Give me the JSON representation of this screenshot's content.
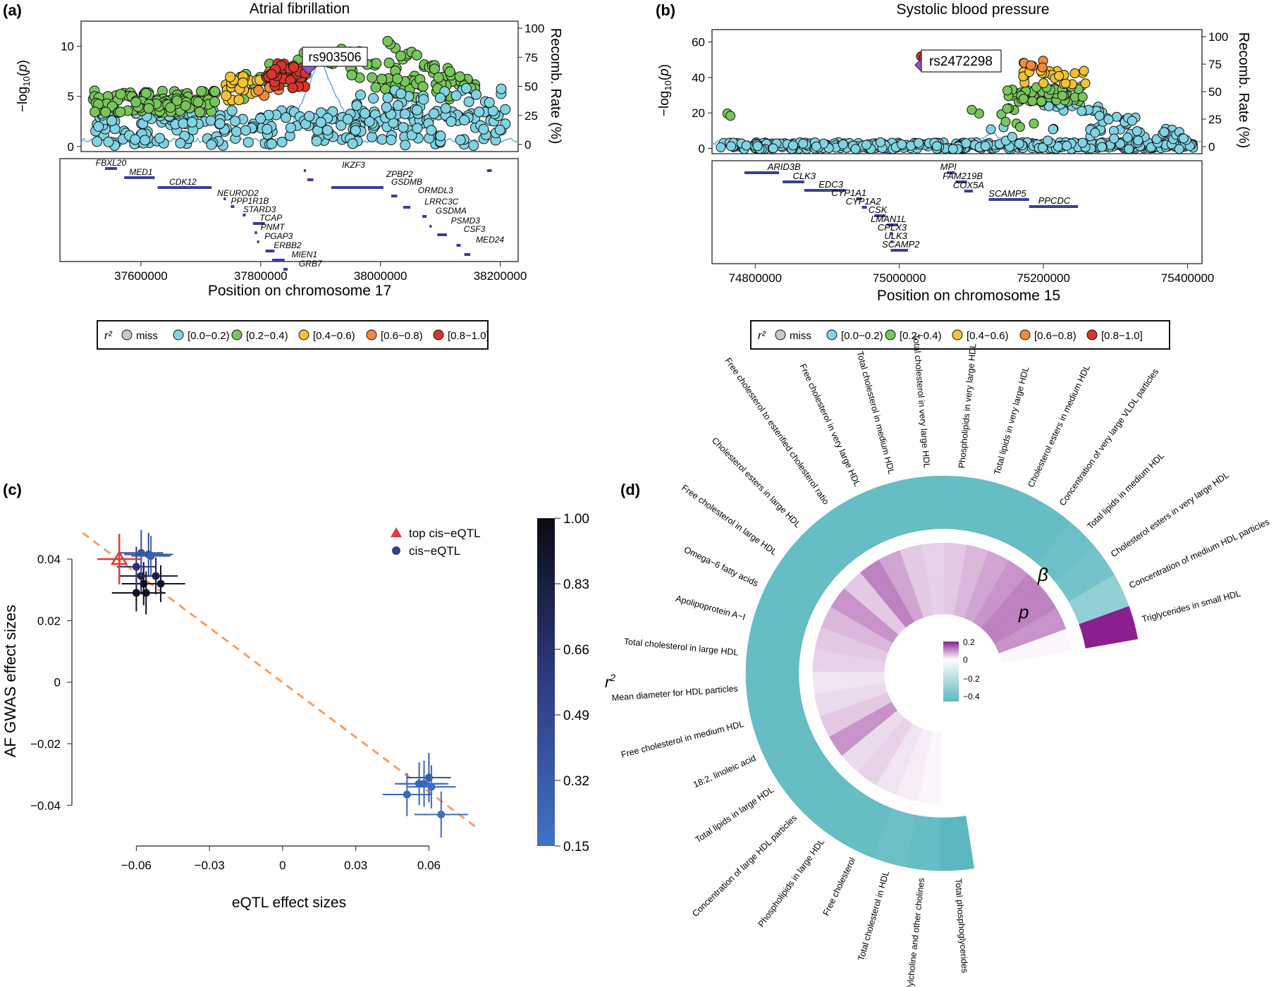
{
  "figure_title": "",
  "colors": {
    "miss": "#c8c8c8",
    "r0": "#7fd3e3",
    "r1": "#77c65a",
    "r2": "#f2c232",
    "r3": "#f08a3c",
    "r4": "#d8352c",
    "lead": "#8e57c8",
    "gene": "#3b3f96",
    "teal": "#6fc0c7",
    "purple": "#8b1f8f",
    "recomb": "#6ab0d8",
    "fit": "#f0a36a",
    "top": "#e23a36"
  },
  "panel_a": {
    "panel_label": "(a)",
    "title": "Atrial fibrillation",
    "ylabel": "−log10(p)",
    "y2label": "Recomb. Rate (%)",
    "xlabel": "Position on chromosome 17",
    "lead_snp": "rs903506",
    "chart_data": {
      "type": "scatter",
      "xlim": [
        37500000,
        38230000
      ],
      "ylim": [
        -0.5,
        12.5
      ],
      "y_ticks": [
        "0",
        "5",
        "10"
      ],
      "y2_ticks": [
        "0",
        "25",
        "50",
        "75",
        "100"
      ],
      "x_ticks": [
        "37600000",
        "37800000",
        "38000000",
        "38200000"
      ],
      "lead": {
        "x": 37880000,
        "y": 7.9
      },
      "gene_rows": [
        [
          37540000,
          37560000,
          14
        ],
        [
          37572000,
          37623000,
          27
        ],
        [
          37628000,
          37718000,
          41
        ],
        [
          37738000,
          37742000,
          57
        ],
        [
          37750000,
          37756000,
          68
        ],
        [
          37770000,
          37775000,
          80
        ],
        [
          37787000,
          37807000,
          92
        ],
        [
          37790000,
          37794000,
          105
        ],
        [
          37794000,
          37796000,
          118
        ],
        [
          37808000,
          37823000,
          131
        ],
        [
          37819000,
          37840000,
          144
        ],
        [
          37838000,
          37845000,
          157
        ],
        [
          37872000,
          37873000,
          17
        ],
        [
          37878000,
          37888000,
          30
        ],
        [
          37918000,
          38005000,
          41
        ],
        [
          38018000,
          38028000,
          53
        ],
        [
          38038000,
          38050000,
          69
        ],
        [
          38070000,
          38077000,
          82
        ],
        [
          38082000,
          38085000,
          96
        ],
        [
          38095000,
          38111000,
          108
        ],
        [
          38127000,
          38134000,
          123
        ],
        [
          38140000,
          38150000,
          136
        ],
        [
          38178000,
          38186000,
          17
        ]
      ],
      "genes": [
        {
          "name": "FBXL20",
          "x": 37550000
        },
        {
          "name": "MED1",
          "x": 37600000
        },
        {
          "name": "CDK12",
          "x": 37670000
        },
        {
          "name": "NEUROD2",
          "x": 37762000
        },
        {
          "name": "PPP1R1B",
          "x": 37782000
        },
        {
          "name": "STARD3",
          "x": 37798000
        },
        {
          "name": "TCAP",
          "x": 37817000
        },
        {
          "name": "PNMT",
          "x": 37820000
        },
        {
          "name": "PGAP3",
          "x": 37830000
        },
        {
          "name": "ERBB2",
          "x": 37845000
        },
        {
          "name": "MIEN1",
          "x": 37873000
        },
        {
          "name": "GRB7",
          "x": 37883000
        },
        {
          "name": "IKZF3",
          "x": 37955000
        },
        {
          "name": "ZPBP2",
          "x": 38032000
        },
        {
          "name": "GSDMB",
          "x": 38044000
        },
        {
          "name": "ORMDL3",
          "x": 38092000
        },
        {
          "name": "LRRC3C",
          "x": 38102000
        },
        {
          "name": "GSDMA",
          "x": 38118000
        },
        {
          "name": "PSMD3",
          "x": 38142000
        },
        {
          "name": "CSF3",
          "x": 38157000
        },
        {
          "name": "MED24",
          "x": 38183000
        }
      ]
    }
  },
  "panel_b": {
    "panel_label": "(b)",
    "title": "Systolic blood pressure",
    "ylabel": "−log10(p)",
    "y2label": "Recomb. Rate (%)",
    "xlabel": "Position on chromosome 15",
    "lead_snp": "rs2472298",
    "chart_data": {
      "type": "scatter",
      "xlim": [
        74740000,
        75420000
      ],
      "ylim": [
        -3,
        67
      ],
      "y_ticks": [
        "0",
        "20",
        "40",
        "60"
      ],
      "y2_ticks": [
        "0",
        "25",
        "50",
        "75",
        "100"
      ],
      "x_ticks": [
        "74800000",
        "75000000",
        "75200000",
        "75400000"
      ],
      "lead": {
        "x": 75031000,
        "y": 47
      },
      "gene_rows": [
        [
          74785000,
          74833000,
          17
        ],
        [
          74838000,
          74868000,
          30
        ],
        [
          74868000,
          74925000,
          42
        ],
        [
          74940000,
          74948000,
          54
        ],
        [
          74948000,
          74955000,
          66
        ],
        [
          74965000,
          74981000,
          78
        ],
        [
          74983000,
          74998000,
          91
        ],
        [
          74987000,
          74990000,
          103
        ],
        [
          74988000,
          74990000,
          115
        ],
        [
          74988000,
          75012000,
          127
        ],
        [
          75066000,
          75077000,
          17
        ],
        [
          75078000,
          75094000,
          30
        ],
        [
          75090000,
          75102000,
          43
        ],
        [
          75124000,
          75180000,
          55
        ],
        [
          75180000,
          75248000,
          65
        ]
      ],
      "genes": [
        {
          "name": "ARID3B",
          "x": 74840000
        },
        {
          "name": "CLK3",
          "x": 74868000
        },
        {
          "name": "EDC3",
          "x": 74905000
        },
        {
          "name": "CYP1A1",
          "x": 74930000
        },
        {
          "name": "CYP1A2",
          "x": 74950000
        },
        {
          "name": "CSK",
          "x": 74970000
        },
        {
          "name": "LMAN1L",
          "x": 74985000
        },
        {
          "name": "CPLX3",
          "x": 74990000
        },
        {
          "name": "ULK3",
          "x": 74995000
        },
        {
          "name": "SCAMP2",
          "x": 75002000
        },
        {
          "name": "MPI",
          "x": 75068000
        },
        {
          "name": "FAM219B",
          "x": 75088000
        },
        {
          "name": "COX5A",
          "x": 75096000
        },
        {
          "name": "SCAMP5",
          "x": 75150000
        },
        {
          "name": "PPCDC",
          "x": 75215000
        }
      ]
    }
  },
  "legend_ab": {
    "title": "r²",
    "items": [
      {
        "label": "miss",
        "color": "#c8c8c8"
      },
      {
        "label": "[0.0−0.2)",
        "color": "#7fd3e3"
      },
      {
        "label": "[0.2−0.4)",
        "color": "#77c65a"
      },
      {
        "label": "[0.4−0.6)",
        "color": "#f2c232"
      },
      {
        "label": "[0.6−0.8)",
        "color": "#f08a3c"
      },
      {
        "label": "[0.8−1.0]",
        "color": "#d8352c"
      }
    ]
  },
  "panel_c": {
    "panel_label": "(c)",
    "xlabel": "eQTL effect sizes",
    "ylabel": "AF GWAS effect sizes",
    "legend": {
      "top": "top cis−eQTL",
      "cis": "cis−eQTL"
    },
    "colorbar": {
      "label": "r2",
      "ticks": [
        "1.00",
        "0.83",
        "0.66",
        "0.49",
        "0.32",
        "0.15"
      ]
    },
    "chart_data": {
      "type": "scatter",
      "xlim": [
        -0.087,
        0.083
      ],
      "ylim": [
        -0.0475,
        0.051
      ],
      "x_ticks": [
        -0.06,
        -0.03,
        0,
        0.03,
        0.06
      ],
      "x_tick_labels": [
        "−0.06",
        "−0.03",
        "0",
        "0.03",
        "0.06"
      ],
      "y_ticks": [
        0.04,
        0.02,
        0,
        -0.02,
        -0.04
      ],
      "y_tick_labels": [
        "0.04",
        "0.02",
        "0",
        "−0.02",
        "−0.04"
      ],
      "fit_line": {
        "x": [
          -0.082,
          0.08
        ],
        "y": [
          0.0485,
          -0.0475
        ]
      },
      "top": {
        "x": -0.067,
        "y": 0.04,
        "xerr": 0.009,
        "yerr": 0.0082
      },
      "points": [
        [
          -0.06,
          0.029,
          0.95,
          0.01,
          0.006
        ],
        [
          -0.056,
          0.029,
          0.93,
          0.008,
          0.007
        ],
        [
          -0.057,
          0.032,
          0.97,
          0.009,
          0.007
        ],
        [
          -0.05,
          0.032,
          0.9,
          0.01,
          0.006
        ],
        [
          -0.058,
          0.0345,
          0.85,
          0.009,
          0.006
        ],
        [
          -0.052,
          0.0345,
          0.8,
          0.009,
          0.006
        ],
        [
          -0.06,
          0.0375,
          0.65,
          0.008,
          0.0065
        ],
        [
          -0.055,
          0.0415,
          0.45,
          0.01,
          0.007
        ],
        [
          -0.058,
          0.042,
          0.38,
          0.009,
          0.0075
        ],
        [
          -0.054,
          0.041,
          0.3,
          0.008,
          0.0065
        ],
        [
          0.051,
          -0.0365,
          0.22,
          0.01,
          0.007
        ],
        [
          0.056,
          -0.033,
          0.28,
          0.01,
          0.007
        ],
        [
          0.058,
          -0.033,
          0.25,
          0.01,
          0.0075
        ],
        [
          0.06,
          -0.031,
          0.35,
          0.009,
          0.008
        ],
        [
          0.061,
          -0.034,
          0.2,
          0.01,
          0.007
        ],
        [
          0.065,
          -0.043,
          0.18,
          0.011,
          0.0075
        ]
      ]
    }
  },
  "panel_d": {
    "panel_label": "(d)",
    "ring_labels": {
      "beta": "β",
      "p": "p"
    },
    "colorbar_ticks": [
      "0.2",
      "0",
      "−0.2",
      "−0.4"
    ],
    "chart_data": {
      "type": "heatmap",
      "traits": [
        "Triglycerides in small HDL",
        "Concentration of medium HDL particles",
        "Cholesterol esters in very large HDL",
        "Total lipids in medium HDL",
        "Concentration of very large VLDL particles",
        "Cholesterol esters in medium HDL",
        "Total lipids in very large HDL",
        "Phospholipids in very large HDL",
        "Total cholesterol in very large HDL",
        "Total cholesterol in medium HDL",
        "Free cholesterol in very large HDL",
        "Free cholesterol to esterified cholesterol ratio",
        "Cholesterol esters in large HDL",
        "Free cholesterol in large HDL",
        "Omega−6 fatty acids",
        "Apolipoprotein A−I",
        "Total cholesterol in large HDL",
        "Mean diameter for HDL particles",
        "Free cholesterol in medium HDL",
        "18:2, linoleic acid",
        "Total lipids in large HDL",
        "Concentration of large HDL particles",
        "Phospholipids in large HDL",
        "Free cholesterol",
        "Total cholesterol in HDL",
        "Phosphatidylcholine and other cholines",
        "Total phosphoglycerides"
      ],
      "beta": [
        0.25,
        -0.3,
        -0.38,
        -0.4,
        -0.42,
        -0.42,
        -0.42,
        -0.42,
        -0.42,
        -0.42,
        -0.42,
        -0.42,
        -0.42,
        -0.42,
        -0.42,
        -0.42,
        -0.42,
        -0.42,
        -0.42,
        -0.42,
        -0.42,
        -0.42,
        -0.42,
        -0.42,
        -0.4,
        -0.42,
        -0.45
      ],
      "p": [
        0.01,
        0.12,
        0.14,
        0.14,
        0.12,
        0.1,
        0.08,
        0.06,
        0.05,
        0.06,
        0.1,
        0.14,
        0.06,
        0.12,
        0.08,
        0.06,
        0.05,
        0.03,
        0.04,
        0.06,
        0.12,
        0.04,
        0.05,
        0.03,
        0.02,
        0.01,
        0.0
      ],
      "scale": [
        -0.45,
        0.25
      ]
    }
  }
}
